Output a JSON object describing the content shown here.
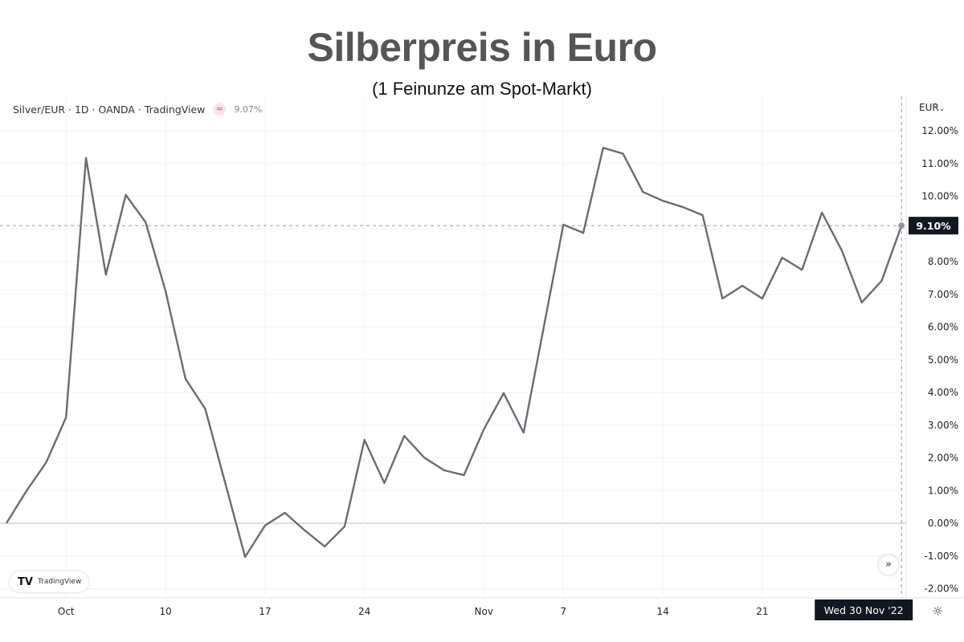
{
  "title": "Silberpreis in Euro",
  "subtitle": "(1 Feinunze am Spot-Markt)",
  "legend": {
    "symbol": "Silver/EUR · 1D · OANDA · TradingView",
    "icon": "approx-equal-icon",
    "value": "9.07%"
  },
  "axis": {
    "currency": "EUR",
    "currency_caret": "⌄",
    "last_value_label": "9.10%",
    "crosshair_date": "Wed 30 Nov '22"
  },
  "controls": {
    "scroll_label": "»",
    "settings_icon": "☼",
    "logo_mark": "TV",
    "logo_text": "TradingView"
  },
  "chart_data": {
    "type": "line",
    "title": "Silberpreis in Euro",
    "subtitle": "(1 Feinunze am Spot-Markt)",
    "ylabel": "",
    "xlabel": "",
    "ylim": [
      -2.3,
      12.5
    ],
    "y_ticks": [
      "12.00%",
      "11.00%",
      "10.00%",
      "9.00%",
      "8.00%",
      "7.00%",
      "6.00%",
      "5.00%",
      "4.00%",
      "3.00%",
      "2.00%",
      "1.00%",
      "0.00%",
      "-1.00%",
      "-2.00%"
    ],
    "y_tick_values": [
      12,
      11,
      10,
      9,
      8,
      7,
      6,
      5,
      4,
      3,
      2,
      1,
      0,
      -1,
      -2
    ],
    "hidden_tick": "9.00%",
    "x_ticks": [
      {
        "label": "Oct",
        "date": "2022-10-03"
      },
      {
        "label": "10",
        "date": "2022-10-10"
      },
      {
        "label": "17",
        "date": "2022-10-17"
      },
      {
        "label": "24",
        "date": "2022-10-24"
      },
      {
        "label": "Nov",
        "date": "2022-11-01"
      },
      {
        "label": "7",
        "date": "2022-11-07"
      },
      {
        "label": "14",
        "date": "2022-11-14"
      },
      {
        "label": "21",
        "date": "2022-11-21"
      }
    ],
    "grid": true,
    "line_color": "#6b6b73",
    "x": [
      "2022-09-28",
      "2022-09-29",
      "2022-09-30",
      "2022-10-03",
      "2022-10-04",
      "2022-10-05",
      "2022-10-06",
      "2022-10-07",
      "2022-10-10",
      "2022-10-11",
      "2022-10-12",
      "2022-10-13",
      "2022-10-14",
      "2022-10-17",
      "2022-10-18",
      "2022-10-19",
      "2022-10-20",
      "2022-10-21",
      "2022-10-24",
      "2022-10-25",
      "2022-10-26",
      "2022-10-27",
      "2022-10-28",
      "2022-10-31",
      "2022-11-01",
      "2022-11-02",
      "2022-11-03",
      "2022-11-04",
      "2022-11-07",
      "2022-11-08",
      "2022-11-09",
      "2022-11-10",
      "2022-11-11",
      "2022-11-14",
      "2022-11-15",
      "2022-11-16",
      "2022-11-17",
      "2022-11-18",
      "2022-11-21",
      "2022-11-22",
      "2022-11-23",
      "2022-11-24",
      "2022-11-25",
      "2022-11-28",
      "2022-11-29",
      "2022-11-30"
    ],
    "values": [
      0.0,
      0.98,
      1.86,
      3.24,
      11.17,
      7.6,
      10.04,
      9.2,
      7.1,
      4.42,
      3.49,
      1.23,
      -1.03,
      -0.07,
      0.32,
      -0.22,
      -0.71,
      -0.1,
      2.55,
      1.23,
      2.67,
      2.01,
      1.62,
      1.47,
      2.87,
      3.98,
      2.77,
      5.95,
      9.13,
      8.88,
      11.48,
      11.3,
      10.13,
      9.86,
      9.67,
      9.42,
      6.87,
      7.26,
      6.87,
      8.12,
      7.75,
      9.5,
      8.34,
      6.75,
      7.41,
      9.1
    ],
    "last_value": 9.1
  }
}
